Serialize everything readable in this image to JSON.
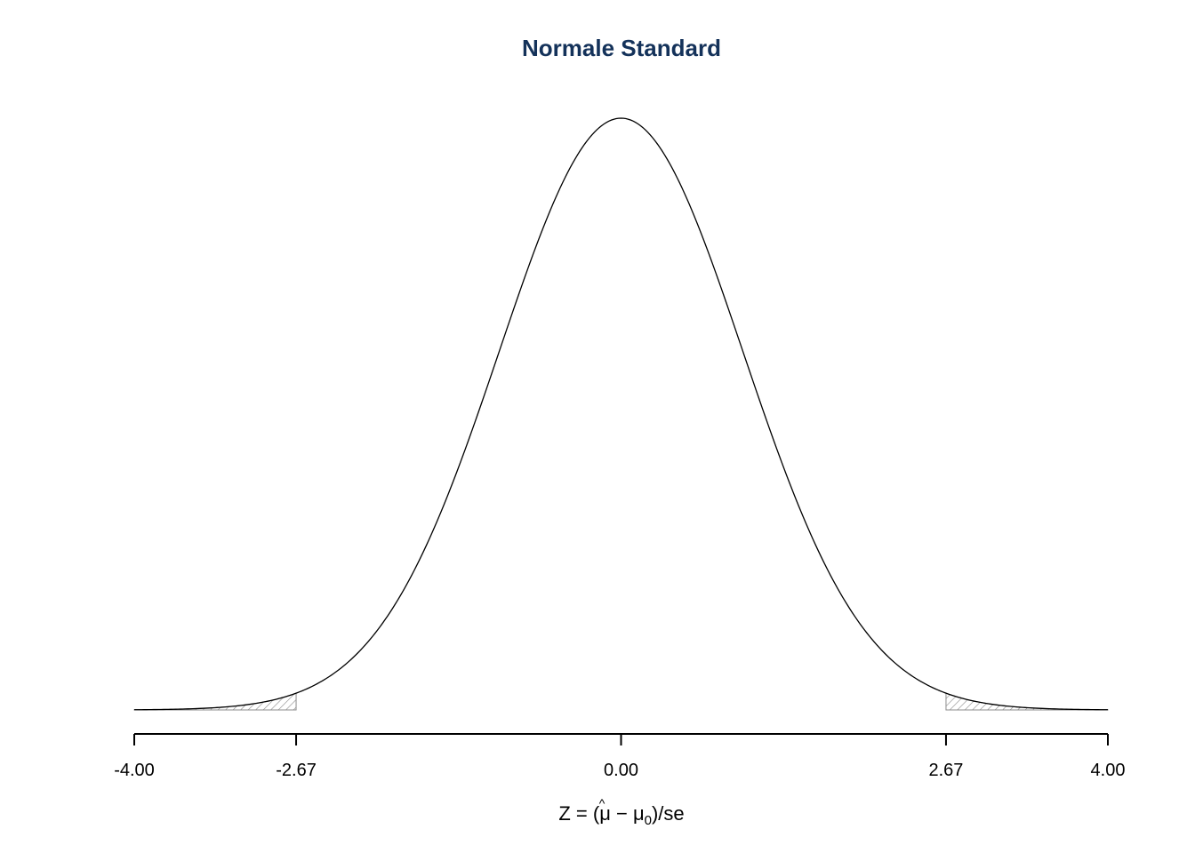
{
  "chart_data": {
    "type": "area",
    "title": "Normale Standard",
    "xlabel_parts": {
      "lead": "Z = (",
      "hat_symbol": "μ",
      "hat_mark": "^",
      "minus": " − μ",
      "subscript": "0",
      "tail": ")/se"
    },
    "distribution": "standard-normal",
    "mean": 0,
    "sd": 1,
    "xlim": [
      -4.0,
      4.0
    ],
    "ticks": [
      -4.0,
      -2.67,
      0.0,
      2.67,
      4.0
    ],
    "tick_labels": [
      "-4.00",
      "-2.67",
      "0.00",
      "2.67",
      "4.00"
    ],
    "shaded_regions": [
      {
        "from": -4.0,
        "to": -2.67,
        "fill": "hatched"
      },
      {
        "from": 2.67,
        "to": 4.0,
        "fill": "hatched"
      }
    ],
    "grid": false,
    "legend": "none",
    "colors": {
      "title": "#14325a",
      "curve": "#000000",
      "hatch": "#8c8c8c"
    }
  }
}
